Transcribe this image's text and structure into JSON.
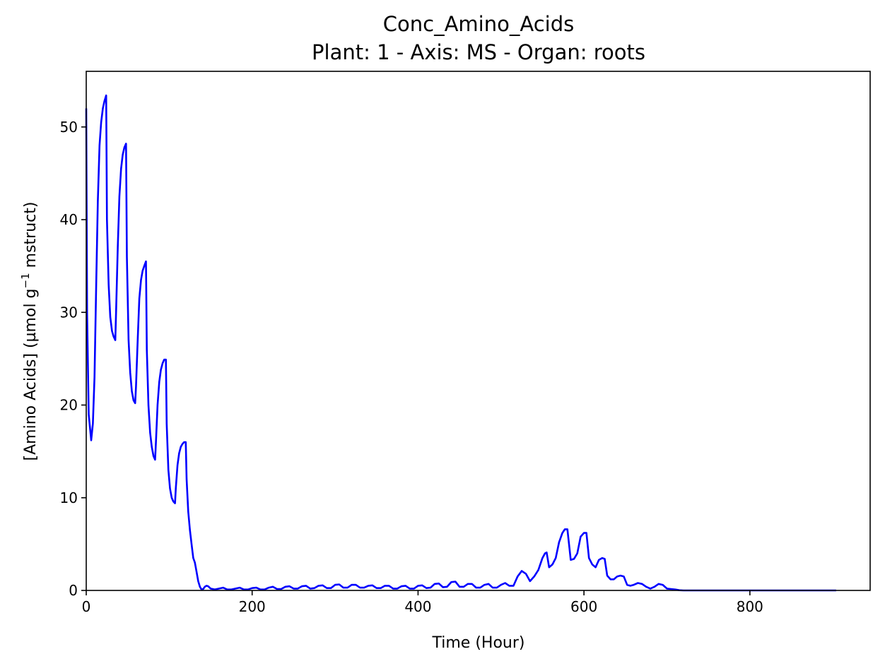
{
  "chart_data": {
    "type": "line",
    "title": "Conc_Amino_Acids",
    "subtitle": "Plant: 1 - Axis: MS - Organ: roots",
    "xlabel": "Time (Hour)",
    "ylabel_parts": {
      "before": "[Amino Acids] (µmol g",
      "superscript": "−1",
      "after": " mstruct)"
    },
    "xlim": [
      0,
      945
    ],
    "ylim": [
      0,
      56
    ],
    "xticks": [
      0,
      200,
      400,
      600,
      800
    ],
    "yticks": [
      0,
      10,
      20,
      30,
      40,
      50
    ],
    "grid": false,
    "legend": "none",
    "line_color": "#0000ff",
    "series": [
      {
        "x": [
          0,
          1,
          3,
          6,
          8,
          10,
          12,
          14,
          16,
          18,
          20,
          22,
          24,
          25,
          27,
          29,
          31,
          33,
          35,
          36,
          38,
          40,
          42,
          44,
          46,
          48,
          49,
          51,
          53,
          55,
          57,
          59,
          60,
          62,
          64,
          66,
          68,
          70,
          72,
          73,
          75,
          77,
          79,
          81,
          83,
          84,
          86,
          88,
          90,
          92,
          94,
          96,
          97,
          99,
          101,
          103,
          105,
          107,
          108,
          110,
          112,
          114,
          116,
          118,
          120,
          121,
          123,
          125,
          127,
          129,
          131,
          133,
          135,
          137,
          139,
          141,
          143,
          145,
          147,
          150,
          155,
          160,
          165,
          170,
          175,
          180,
          185,
          190,
          195,
          200,
          205,
          210,
          215,
          220,
          225,
          230,
          235,
          240,
          245,
          250,
          255,
          260,
          265,
          270,
          275,
          280,
          285,
          290,
          295,
          300,
          305,
          310,
          315,
          320,
          325,
          330,
          335,
          340,
          345,
          350,
          355,
          360,
          365,
          370,
          375,
          380,
          385,
          390,
          395,
          400,
          405,
          410,
          415,
          420,
          425,
          430,
          435,
          440,
          445,
          450,
          455,
          460,
          465,
          470,
          475,
          480,
          485,
          490,
          495,
          500,
          505,
          510,
          515,
          520,
          525,
          530,
          535,
          540,
          545,
          550,
          553,
          555,
          558,
          562,
          566,
          570,
          574,
          577,
          580,
          584,
          588,
          592,
          596,
          600,
          603,
          606,
          610,
          614,
          618,
          622,
          625,
          628,
          632,
          636,
          640,
          644,
          648,
          652,
          656,
          660,
          665,
          670,
          675,
          680,
          685,
          690,
          695,
          700,
          705,
          710,
          715,
          720,
          740,
          760,
          780,
          800,
          820,
          840,
          860,
          880,
          904
        ],
        "values": [
          52.0,
          30.0,
          19.0,
          16.2,
          18.0,
          23.0,
          33.0,
          42.0,
          48.0,
          50.5,
          52.0,
          52.8,
          53.4,
          40.0,
          33.0,
          29.5,
          28.0,
          27.4,
          27.0,
          30.0,
          37.0,
          42.5,
          45.5,
          47.0,
          47.8,
          48.2,
          36.0,
          27.0,
          23.5,
          21.5,
          20.5,
          20.2,
          22.0,
          27.0,
          31.5,
          33.5,
          34.5,
          35.0,
          35.5,
          26.0,
          20.0,
          17.0,
          15.5,
          14.5,
          14.1,
          16.0,
          20.0,
          22.5,
          23.8,
          24.5,
          24.9,
          24.9,
          18.0,
          13.0,
          11.0,
          10.0,
          9.6,
          9.4,
          11.0,
          13.5,
          14.8,
          15.5,
          15.8,
          16.0,
          16.0,
          12.0,
          8.5,
          6.5,
          5.0,
          3.5,
          3.0,
          2.0,
          1.0,
          0.4,
          0.1,
          0.15,
          0.4,
          0.5,
          0.45,
          0.2,
          0.1,
          0.2,
          0.3,
          0.1,
          0.1,
          0.2,
          0.3,
          0.1,
          0.1,
          0.25,
          0.3,
          0.1,
          0.1,
          0.3,
          0.4,
          0.15,
          0.15,
          0.4,
          0.45,
          0.2,
          0.2,
          0.45,
          0.5,
          0.2,
          0.25,
          0.5,
          0.55,
          0.25,
          0.25,
          0.6,
          0.65,
          0.3,
          0.3,
          0.6,
          0.6,
          0.3,
          0.3,
          0.5,
          0.55,
          0.25,
          0.25,
          0.5,
          0.5,
          0.2,
          0.2,
          0.45,
          0.5,
          0.2,
          0.2,
          0.5,
          0.55,
          0.25,
          0.3,
          0.7,
          0.75,
          0.35,
          0.4,
          0.9,
          0.95,
          0.4,
          0.4,
          0.7,
          0.7,
          0.3,
          0.3,
          0.6,
          0.7,
          0.3,
          0.3,
          0.6,
          0.8,
          0.5,
          0.5,
          1.5,
          2.1,
          1.8,
          1.0,
          1.5,
          2.2,
          3.5,
          4.0,
          4.1,
          2.5,
          2.8,
          3.5,
          5.2,
          6.2,
          6.6,
          6.6,
          3.3,
          3.4,
          4.0,
          5.8,
          6.2,
          6.2,
          3.5,
          2.8,
          2.5,
          3.3,
          3.5,
          3.4,
          1.6,
          1.2,
          1.2,
          1.5,
          1.6,
          1.5,
          0.6,
          0.5,
          0.6,
          0.8,
          0.7,
          0.4,
          0.2,
          0.4,
          0.7,
          0.6,
          0.2,
          0.15,
          0.1,
          0.02,
          0.0,
          0.0,
          0.0,
          0.0,
          0.0,
          0.0,
          0.0,
          0.0,
          0.0,
          0.0
        ]
      }
    ]
  }
}
